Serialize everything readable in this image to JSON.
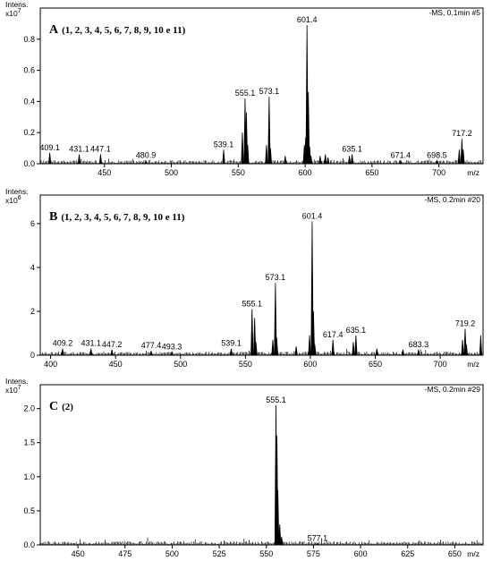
{
  "chart_data": [
    {
      "type": "line",
      "panel_label": "A",
      "title": "(1, 2, 3, 4, 5, 6, 7, 8, 9, 10 e 11)",
      "scan_info": "-MS, 0.1min #5",
      "ylabel": "Intens.",
      "y_multiplier": "x10",
      "y_exponent": "7",
      "xlabel": "m/z",
      "xlim": [
        402,
        733
      ],
      "ylim": [
        0,
        1.0
      ],
      "xticks": [
        450,
        500,
        550,
        600,
        650,
        700
      ],
      "yticks": [
        0.0,
        0.2,
        0.4,
        0.6,
        0.8
      ],
      "ytick_labels": [
        "0.0",
        "0.2",
        "0.4",
        "0.6",
        "0.8"
      ],
      "peak_labels": [
        {
          "text": "409.1",
          "x": 409.1,
          "y": 0.07
        },
        {
          "text": "431.1",
          "x": 431.1,
          "y": 0.06
        },
        {
          "text": "447.1",
          "x": 447.1,
          "y": 0.06
        },
        {
          "text": "480.9",
          "x": 480.9,
          "y": 0.02
        },
        {
          "text": "539.1",
          "x": 539.1,
          "y": 0.09
        },
        {
          "text": "555.1",
          "x": 555.1,
          "y": 0.42
        },
        {
          "text": "573.1",
          "x": 573.1,
          "y": 0.43
        },
        {
          "text": "601.4",
          "x": 601.4,
          "y": 0.89
        },
        {
          "text": "635.1",
          "x": 635.1,
          "y": 0.06
        },
        {
          "text": "671.4",
          "x": 671.4,
          "y": 0.02
        },
        {
          "text": "698.5",
          "x": 698.5,
          "y": 0.02
        },
        {
          "text": "717.2",
          "x": 717.2,
          "y": 0.16
        }
      ],
      "peaks": [
        [
          409.1,
          0.07
        ],
        [
          431.1,
          0.06
        ],
        [
          447.1,
          0.06
        ],
        [
          480.9,
          0.02
        ],
        [
          539.1,
          0.09
        ],
        [
          553.1,
          0.2
        ],
        [
          555.1,
          0.42
        ],
        [
          556.1,
          0.33
        ],
        [
          557.1,
          0.12
        ],
        [
          571.1,
          0.12
        ],
        [
          573.1,
          0.43
        ],
        [
          574.1,
          0.1
        ],
        [
          585.1,
          0.05
        ],
        [
          599.4,
          0.12
        ],
        [
          600.4,
          0.17
        ],
        [
          601.4,
          0.89
        ],
        [
          602.4,
          0.46
        ],
        [
          603.4,
          0.11
        ],
        [
          604.4,
          0.05
        ],
        [
          611.2,
          0.05
        ],
        [
          615.1,
          0.06
        ],
        [
          617.1,
          0.04
        ],
        [
          633.1,
          0.05
        ],
        [
          635.1,
          0.06
        ],
        [
          671.4,
          0.02
        ],
        [
          698.5,
          0.02
        ],
        [
          715.2,
          0.09
        ],
        [
          717.2,
          0.16
        ],
        [
          718.2,
          0.09
        ]
      ]
    },
    {
      "type": "line",
      "panel_label": "B",
      "title": "(1, 2, 3, 4, 5, 6, 7, 8, 9, 10 e 11)",
      "scan_info": "-MS, 0.2min #20",
      "ylabel": "Intens.",
      "y_multiplier": "x10",
      "y_exponent": "6",
      "xlabel": "m/z",
      "xlim": [
        392,
        733
      ],
      "ylim": [
        0,
        7.3
      ],
      "xticks": [
        400,
        450,
        500,
        550,
        600,
        650,
        700
      ],
      "yticks": [
        0,
        2,
        4,
        6
      ],
      "ytick_labels": [
        "0",
        "2",
        "4",
        "6"
      ],
      "peak_labels": [
        {
          "text": "409.2",
          "x": 409.2,
          "y": 0.3
        },
        {
          "text": "431.1",
          "x": 431.1,
          "y": 0.3
        },
        {
          "text": "447.2",
          "x": 447.2,
          "y": 0.25
        },
        {
          "text": "477.4",
          "x": 477.4,
          "y": 0.2
        },
        {
          "text": "493.3",
          "x": 493.3,
          "y": 0.15
        },
        {
          "text": "539.1",
          "x": 539.1,
          "y": 0.3
        },
        {
          "text": "555.1",
          "x": 555.1,
          "y": 2.1
        },
        {
          "text": "573.1",
          "x": 573.1,
          "y": 3.3
        },
        {
          "text": "601.4",
          "x": 601.4,
          "y": 6.1
        },
        {
          "text": "617.4",
          "x": 617.4,
          "y": 0.7
        },
        {
          "text": "635.1",
          "x": 635.1,
          "y": 0.9
        },
        {
          "text": "683.3",
          "x": 683.3,
          "y": 0.25
        },
        {
          "text": "719.2",
          "x": 719.2,
          "y": 1.2
        }
      ],
      "peaks": [
        [
          409.2,
          0.3
        ],
        [
          431.1,
          0.3
        ],
        [
          447.2,
          0.25
        ],
        [
          477.4,
          0.2
        ],
        [
          493.3,
          0.15
        ],
        [
          539.1,
          0.3
        ],
        [
          555.1,
          2.1
        ],
        [
          557.1,
          1.7
        ],
        [
          558.1,
          0.6
        ],
        [
          571.1,
          0.7
        ],
        [
          573.1,
          3.3
        ],
        [
          574.1,
          0.8
        ],
        [
          589.1,
          0.4
        ],
        [
          599.4,
          0.9
        ],
        [
          601.4,
          6.1
        ],
        [
          602.4,
          2.0
        ],
        [
          603.4,
          0.5
        ],
        [
          617.4,
          0.7
        ],
        [
          633.1,
          0.6
        ],
        [
          635.1,
          0.9
        ],
        [
          651.2,
          0.3
        ],
        [
          671.3,
          0.25
        ],
        [
          683.3,
          0.25
        ],
        [
          717.2,
          0.7
        ],
        [
          719.2,
          1.2
        ],
        [
          720.2,
          0.5
        ],
        [
          731.2,
          0.9
        ]
      ]
    },
    {
      "type": "line",
      "panel_label": "C",
      "title": "(2)",
      "scan_info": "-MS, 0.2min #29",
      "ylabel": "Intens.",
      "y_multiplier": "x10",
      "y_exponent": "7",
      "xlabel": "m/z",
      "xlim": [
        430,
        665
      ],
      "ylim": [
        0,
        2.35
      ],
      "xticks": [
        450,
        475,
        500,
        525,
        550,
        575,
        600,
        625,
        650
      ],
      "yticks": [
        0.0,
        0.5,
        1.0,
        1.5,
        2.0
      ],
      "ytick_labels": [
        "0.0",
        "0.5",
        "1.0",
        "1.5",
        "2.0"
      ],
      "peak_labels": [
        {
          "text": "555.1",
          "x": 555.1,
          "y": 2.05
        },
        {
          "text": "577.1",
          "x": 577.1,
          "y": 0.02
        }
      ],
      "peaks": [
        [
          555.1,
          2.05
        ],
        [
          555.6,
          1.6
        ],
        [
          556.1,
          0.8
        ],
        [
          557.1,
          0.3
        ],
        [
          558.1,
          0.12
        ],
        [
          577.1,
          0.02
        ]
      ]
    }
  ]
}
